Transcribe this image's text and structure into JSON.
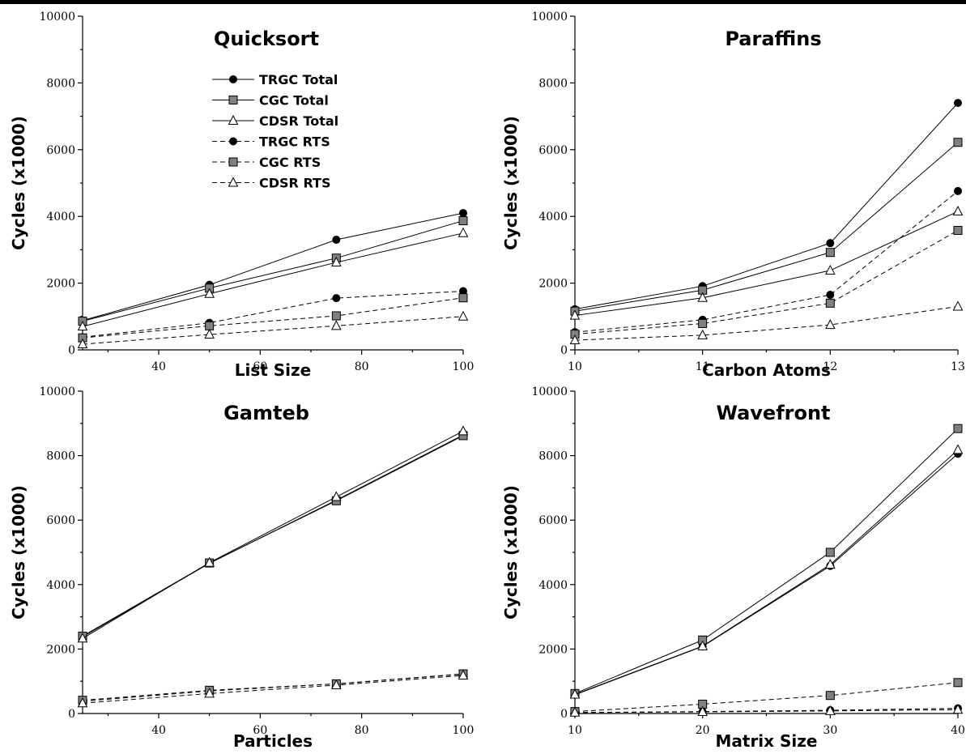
{
  "chart_data": [
    {
      "type": "line",
      "title": "Quicksort",
      "xlabel": "List Size",
      "ylabel": "Cycles (x1000)",
      "xlim": [
        25,
        100
      ],
      "ylim": [
        0,
        10000
      ],
      "xticks": [
        40,
        60,
        80,
        100
      ],
      "yticks": [
        0,
        2000,
        4000,
        6000,
        8000,
        10000
      ],
      "x": [
        25,
        50,
        75,
        100
      ],
      "legend": "top-left",
      "series": [
        {
          "name": "TRGC Total",
          "marker": "circle",
          "dashed": false,
          "values": [
            880,
            1950,
            3300,
            4100
          ]
        },
        {
          "name": "CGC Total",
          "marker": "square",
          "dashed": false,
          "values": [
            860,
            1850,
            2750,
            3870
          ]
        },
        {
          "name": "CDSR Total",
          "marker": "triangle",
          "dashed": false,
          "values": [
            700,
            1680,
            2620,
            3500
          ]
        },
        {
          "name": "TRGC RTS",
          "marker": "circle",
          "dashed": true,
          "values": [
            380,
            810,
            1550,
            1760
          ]
        },
        {
          "name": "CGC RTS",
          "marker": "square",
          "dashed": true,
          "values": [
            360,
            720,
            1020,
            1560
          ]
        },
        {
          "name": "CDSR RTS",
          "marker": "triangle",
          "dashed": true,
          "values": [
            170,
            460,
            720,
            1000
          ]
        }
      ]
    },
    {
      "type": "line",
      "title": "Paraffins",
      "xlabel": "Carbon Atoms",
      "ylabel": "Cycles (x1000)",
      "xlim": [
        10,
        13
      ],
      "ylim": [
        0,
        10000
      ],
      "xticks": [
        10,
        11,
        12,
        13
      ],
      "yticks": [
        0,
        2000,
        4000,
        6000,
        8000,
        10000
      ],
      "x": [
        10,
        11,
        12,
        13
      ],
      "series": [
        {
          "name": "TRGC Total",
          "marker": "circle",
          "dashed": false,
          "values": [
            1220,
            1910,
            3200,
            7400
          ]
        },
        {
          "name": "CGC Total",
          "marker": "square",
          "dashed": false,
          "values": [
            1160,
            1790,
            2920,
            6220
          ]
        },
        {
          "name": "CDSR Total",
          "marker": "triangle",
          "dashed": false,
          "values": [
            1030,
            1560,
            2380,
            4150
          ]
        },
        {
          "name": "TRGC RTS",
          "marker": "circle",
          "dashed": true,
          "values": [
            530,
            900,
            1650,
            4760
          ]
        },
        {
          "name": "CGC RTS",
          "marker": "square",
          "dashed": true,
          "values": [
            470,
            790,
            1400,
            3580
          ]
        },
        {
          "name": "CDSR RTS",
          "marker": "triangle",
          "dashed": true,
          "values": [
            290,
            440,
            750,
            1300
          ]
        }
      ]
    },
    {
      "type": "line",
      "title": "Gamteb",
      "xlabel": "Particles",
      "ylabel": "Cycles (x1000)",
      "xlim": [
        25,
        100
      ],
      "ylim": [
        0,
        10000
      ],
      "xticks": [
        40,
        60,
        80,
        100
      ],
      "yticks": [
        0,
        2000,
        4000,
        6000,
        8000,
        10000
      ],
      "x": [
        25,
        50,
        75,
        100
      ],
      "series": [
        {
          "name": "TRGC Total",
          "marker": "circle",
          "dashed": false,
          "values": [
            2380,
            4660,
            6620,
            8640
          ]
        },
        {
          "name": "CGC Total",
          "marker": "square",
          "dashed": false,
          "values": [
            2400,
            4670,
            6600,
            8620
          ]
        },
        {
          "name": "CDSR Total",
          "marker": "triangle",
          "dashed": false,
          "values": [
            2330,
            4680,
            6720,
            8760
          ]
        },
        {
          "name": "TRGC RTS",
          "marker": "circle",
          "dashed": true,
          "values": [
            380,
            700,
            920,
            1220
          ]
        },
        {
          "name": "CGC RTS",
          "marker": "square",
          "dashed": true,
          "values": [
            410,
            720,
            920,
            1230
          ]
        },
        {
          "name": "CDSR RTS",
          "marker": "triangle",
          "dashed": true,
          "values": [
            320,
            620,
            880,
            1180
          ]
        }
      ]
    },
    {
      "type": "line",
      "title": "Wavefront",
      "xlabel": "Matrix Size",
      "ylabel": "Cycles (x1000)",
      "xlim": [
        10,
        40
      ],
      "ylim": [
        0,
        10000
      ],
      "xticks": [
        10,
        20,
        30,
        40
      ],
      "yticks": [
        0,
        2000,
        4000,
        6000,
        8000,
        10000
      ],
      "x": [
        10,
        20,
        30,
        40
      ],
      "series": [
        {
          "name": "TRGC Total",
          "marker": "circle",
          "dashed": false,
          "values": [
            580,
            2080,
            4580,
            8060
          ]
        },
        {
          "name": "CGC Total",
          "marker": "square",
          "dashed": false,
          "values": [
            620,
            2280,
            5000,
            8840
          ]
        },
        {
          "name": "CDSR Total",
          "marker": "triangle",
          "dashed": false,
          "values": [
            590,
            2090,
            4620,
            8180
          ]
        },
        {
          "name": "TRGC RTS",
          "marker": "circle",
          "dashed": true,
          "values": [
            30,
            60,
            100,
            160
          ]
        },
        {
          "name": "CGC RTS",
          "marker": "square",
          "dashed": true,
          "values": [
            60,
            290,
            560,
            960
          ]
        },
        {
          "name": "CDSR RTS",
          "marker": "triangle",
          "dashed": true,
          "values": [
            30,
            50,
            80,
            120
          ]
        }
      ]
    }
  ]
}
